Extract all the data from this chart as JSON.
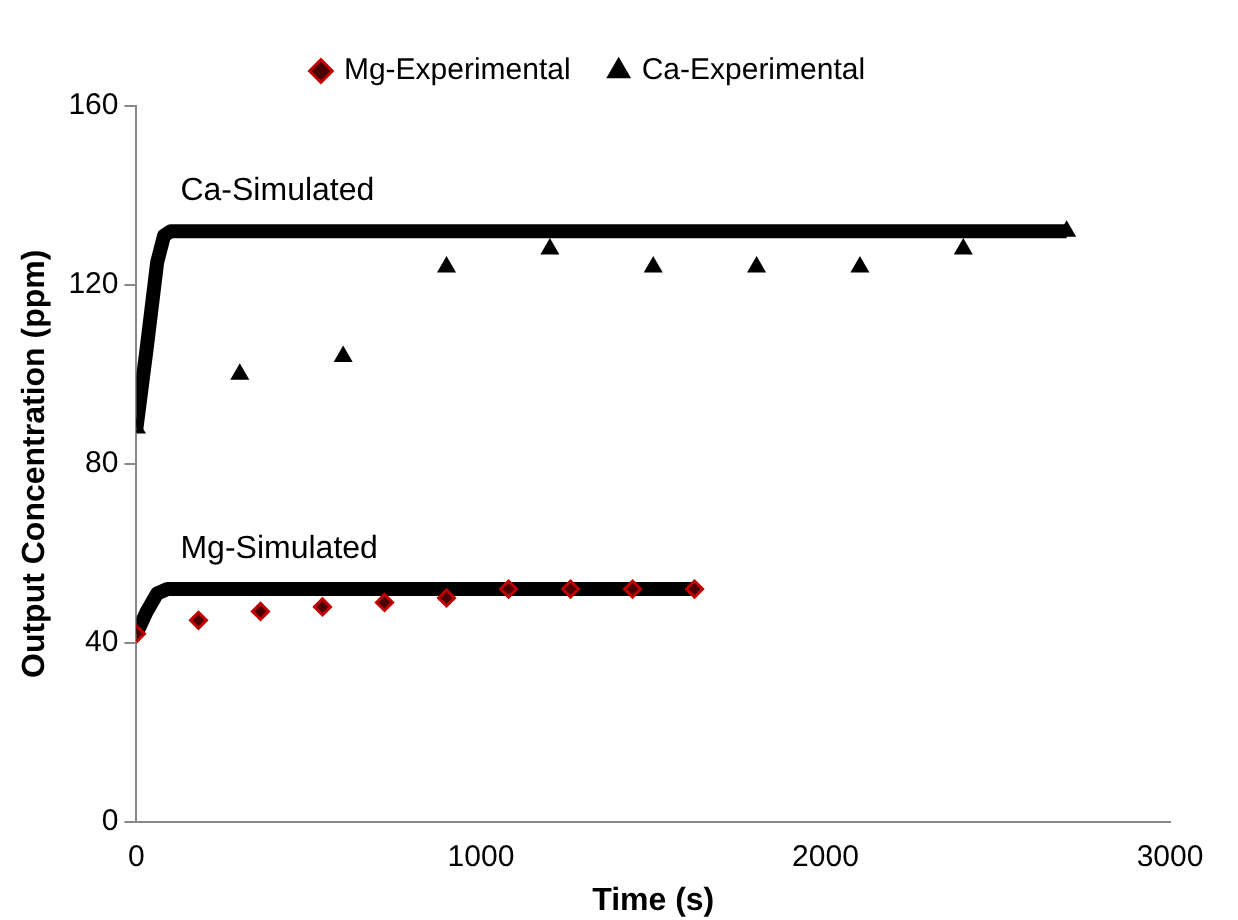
{
  "chart_data": {
    "type": "scatter",
    "xlabel": "Time (s)",
    "ylabel": "Output Concentration (ppm)",
    "xlim": [
      0,
      3000
    ],
    "xticks": [
      0,
      1000,
      2000,
      3000
    ],
    "ylim": [
      0,
      160
    ],
    "yticks": [
      0,
      40,
      80,
      120,
      160
    ],
    "grid": false,
    "legend": "top",
    "series": [
      {
        "name": "Mg-Experimental",
        "type": "scatter",
        "marker": "diamond",
        "color": "#c00000",
        "x": [
          0,
          180,
          360,
          540,
          720,
          900,
          1080,
          1260,
          1440,
          1620
        ],
        "values": [
          42,
          45,
          47,
          48,
          49,
          50,
          52,
          52,
          52,
          52
        ]
      },
      {
        "name": "Ca-Experimental",
        "type": "scatter",
        "marker": "triangle",
        "color": "#000000",
        "x": [
          0,
          300,
          600,
          900,
          1200,
          1500,
          1800,
          2100,
          2400,
          2700
        ],
        "values": [
          88,
          100,
          104,
          124,
          128,
          124,
          124,
          124,
          128,
          132
        ]
      },
      {
        "name": "Ca-Simulated",
        "type": "line",
        "marker": "none",
        "color": "#000000",
        "x": [
          0,
          30,
          60,
          80,
          100,
          2700
        ],
        "values": [
          88,
          106,
          125,
          131,
          132,
          132
        ]
      },
      {
        "name": "Mg-Simulated",
        "type": "line",
        "marker": "none",
        "color": "#000000",
        "x": [
          0,
          30,
          60,
          90,
          1620
        ],
        "values": [
          42,
          47,
          51,
          52,
          52
        ]
      }
    ]
  }
}
